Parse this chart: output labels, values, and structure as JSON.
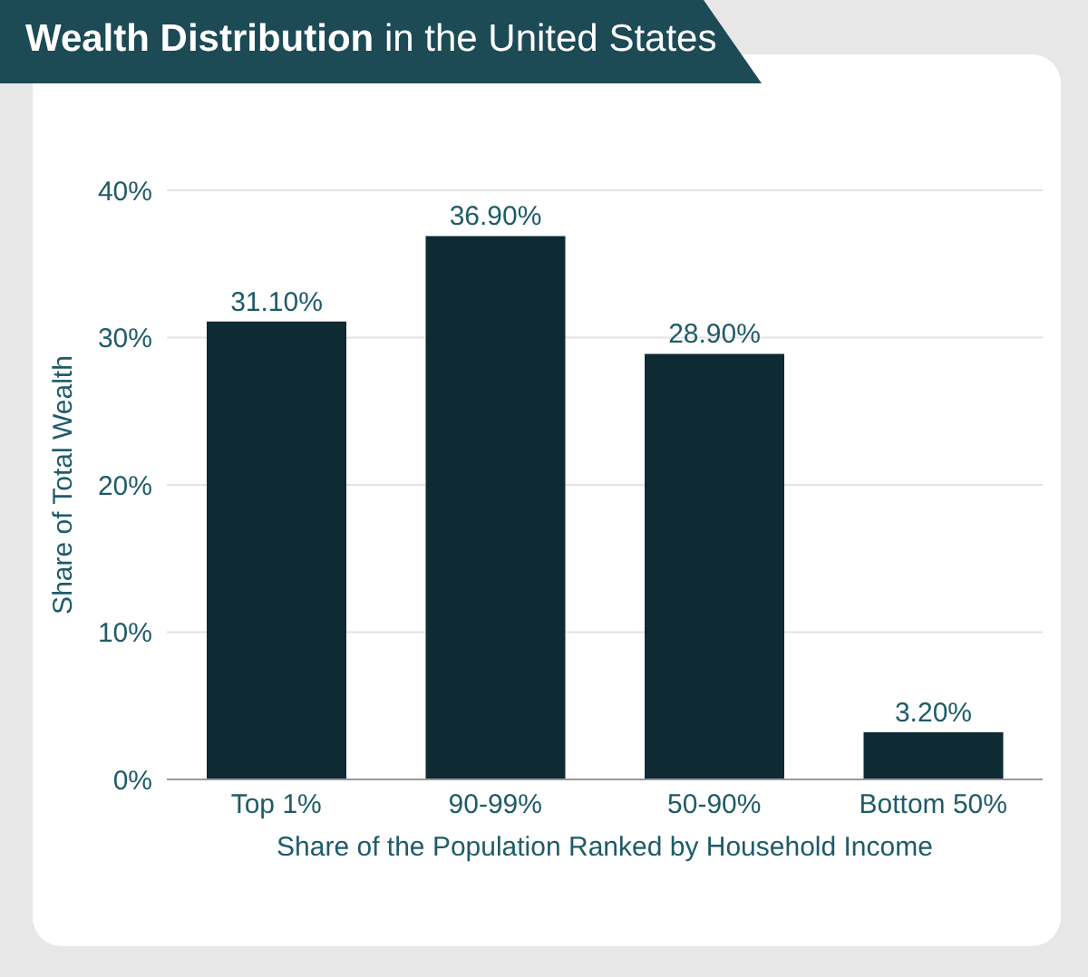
{
  "chart_data": {
    "type": "bar",
    "title": "Wealth Distribution in the United States",
    "xlabel": "Share of the Population Ranked by Household Income",
    "ylabel": "Share of Total Wealth",
    "categories": [
      "Top 1%",
      "90-99%",
      "50-90%",
      "Bottom 50%"
    ],
    "values": [
      31.1,
      36.9,
      28.9,
      3.2
    ],
    "value_labels": [
      "31.10%",
      "36.90%",
      "28.90%",
      "3.20%"
    ],
    "color": "#0e2a32",
    "ylim": [
      0,
      40
    ],
    "yticks": [
      {
        "value": 0,
        "label": "0%"
      },
      {
        "value": 10,
        "label": "10%"
      },
      {
        "value": 20,
        "label": "20%"
      },
      {
        "value": 30,
        "label": "30%"
      },
      {
        "value": 40,
        "label": "40%"
      }
    ],
    "grid": "y",
    "legend": false
  }
}
